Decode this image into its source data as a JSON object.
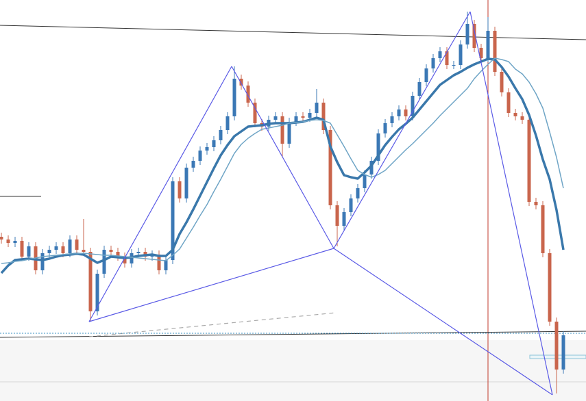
{
  "chart_data": {
    "type": "candlestick",
    "ylim": [
      0,
      586
    ],
    "categories": [
      null,
      null,
      null,
      null,
      null,
      null,
      null,
      null,
      null,
      null,
      null,
      null,
      null,
      null,
      null,
      null,
      null,
      null,
      null,
      null,
      null,
      null,
      null,
      null,
      null,
      null,
      null,
      null,
      null,
      null,
      null,
      null,
      null,
      null,
      null,
      null,
      null,
      null,
      null,
      null,
      null,
      null,
      null,
      null,
      null,
      null,
      null,
      null,
      null,
      null,
      null,
      null,
      null,
      null,
      null,
      null,
      null,
      null,
      null,
      null,
      null,
      null,
      null,
      null,
      null,
      null,
      null,
      null,
      null,
      null,
      null,
      null,
      null,
      null,
      null,
      null,
      null,
      null,
      null,
      null,
      null,
      null,
      null
    ],
    "up_color": "#3b78b5",
    "down_color": "#c9654c",
    "open": [
      240,
      236,
      231,
      234,
      211,
      226,
      191,
      216,
      221,
      226,
      216,
      236,
      221,
      218,
      131,
      186,
      221,
      218,
      211,
      201,
      216,
      218,
      211,
      214,
      191,
      206,
      321,
      296,
      341,
      351,
      366,
      371,
      381,
      396,
      416,
      471,
      461,
      436,
      406,
      401,
      411,
      416,
      376,
      408,
      416,
      414,
      421,
      436,
      396,
      286,
      256,
      276,
      296,
      311,
      331,
      351,
      391,
      406,
      416,
      426,
      416,
      446,
      466,
      486,
      501,
      511,
      491,
      491,
      521,
      551,
      516,
      501,
      541,
      481,
      451,
      421,
      416,
      411,
      291,
      286,
      216,
      116,
      46
    ],
    "high": [
      246,
      242,
      240,
      240,
      232,
      232,
      222,
      227,
      232,
      232,
      242,
      242,
      266,
      224,
      192,
      227,
      227,
      224,
      217,
      222,
      224,
      224,
      220,
      220,
      212,
      327,
      327,
      347,
      357,
      372,
      377,
      387,
      402,
      422,
      489,
      477,
      467,
      442,
      412,
      417,
      422,
      422,
      414,
      422,
      422,
      427,
      456,
      442,
      402,
      292,
      282,
      302,
      317,
      337,
      357,
      397,
      412,
      422,
      432,
      432,
      452,
      472,
      492,
      507,
      517,
      517,
      497,
      527,
      569,
      557,
      522,
      561,
      547,
      487,
      457,
      427,
      422,
      417,
      297,
      292,
      222,
      122,
      102
    ],
    "low": [
      230,
      225,
      225,
      205,
      205,
      185,
      185,
      210,
      215,
      210,
      210,
      215,
      212,
      116,
      125,
      180,
      212,
      205,
      195,
      195,
      210,
      205,
      205,
      185,
      185,
      200,
      290,
      290,
      335,
      345,
      360,
      365,
      375,
      390,
      410,
      455,
      430,
      400,
      395,
      395,
      405,
      356,
      370,
      402,
      408,
      408,
      415,
      390,
      280,
      226,
      250,
      270,
      290,
      305,
      325,
      345,
      385,
      400,
      410,
      410,
      410,
      440,
      460,
      480,
      495,
      485,
      485,
      485,
      515,
      510,
      495,
      495,
      475,
      445,
      415,
      410,
      405,
      285,
      280,
      210,
      110,
      11,
      40
    ],
    "close": [
      236,
      231,
      234,
      211,
      226,
      191,
      216,
      221,
      226,
      216,
      236,
      221,
      218,
      131,
      186,
      221,
      218,
      211,
      201,
      216,
      218,
      211,
      214,
      191,
      206,
      321,
      296,
      341,
      351,
      366,
      371,
      381,
      396,
      416,
      471,
      461,
      436,
      406,
      401,
      411,
      416,
      376,
      408,
      416,
      414,
      421,
      436,
      396,
      286,
      256,
      276,
      296,
      311,
      331,
      351,
      391,
      406,
      416,
      426,
      416,
      446,
      466,
      486,
      501,
      511,
      491,
      491,
      521,
      551,
      516,
      501,
      541,
      481,
      451,
      421,
      416,
      411,
      291,
      286,
      216,
      116,
      46,
      96
    ],
    "moving_averages": [
      {
        "color": "#3a78ab",
        "width": 3.5,
        "values": [
          187,
          198,
          206,
          207,
          208,
          207,
          206,
          208,
          211,
          213,
          214,
          215,
          214,
          208,
          202,
          206,
          211,
          210,
          209,
          210,
          212,
          213,
          214,
          212,
          212,
          221,
          244,
          261,
          280,
          300,
          320,
          340,
          359,
          374,
          387,
          394,
          401,
          402,
          403,
          405,
          406,
          406,
          406,
          407,
          408,
          411,
          414,
          411,
          372,
          349,
          330,
          327,
          325,
          334,
          344,
          359,
          374,
          386,
          397,
          405,
          414,
          426,
          438,
          450,
          462,
          469,
          476,
          481,
          487,
          492,
          496,
          500,
          499,
          488,
          474,
          457,
          441,
          418,
          388,
          353,
          324,
          279,
          221
        ]
      },
      {
        "color": "#6fa5c6",
        "width": 1.5,
        "values": [
          201,
          202,
          204,
          205,
          207,
          209,
          211,
          212,
          213,
          214,
          215,
          215,
          216,
          215,
          214,
          213,
          213,
          212,
          211,
          210,
          209,
          208,
          207,
          206,
          205,
          213,
          222,
          238,
          254,
          271,
          287,
          306,
          324,
          343,
          362,
          375,
          384,
          391,
          397,
          399,
          401,
          403,
          406,
          407,
          408,
          410,
          411,
          410,
          406,
          389,
          372,
          354,
          337,
          331,
          327,
          331,
          337,
          347,
          357,
          367,
          376,
          386,
          396,
          406,
          417,
          427,
          437,
          447,
          457,
          471,
          482,
          492,
          501,
          499,
          496,
          485,
          478,
          466,
          449,
          428,
          393,
          356,
          311
        ]
      }
    ],
    "pattern": {
      "color": "#5a5ae6",
      "x": [
        12.8,
        33.6,
        48.5,
        68.4,
        80.4
      ],
      "values": [
        116,
        489,
        223,
        569,
        9
      ]
    }
  }
}
